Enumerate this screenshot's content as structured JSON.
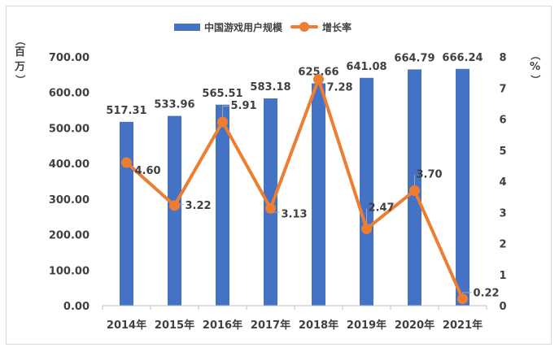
{
  "chart_data": {
    "type": "bar",
    "categories": [
      "2014年",
      "2015年",
      "2016年",
      "2017年",
      "2018年",
      "2019年",
      "2020年",
      "2021年"
    ],
    "series": [
      {
        "name": "中国游戏用户规模",
        "type": "bar",
        "axis": "left",
        "values": [
          517.31,
          533.96,
          565.51,
          583.18,
          625.66,
          641.08,
          664.79,
          666.24
        ],
        "labels": [
          "517.31",
          "533.96",
          "565.51",
          "583.18",
          "625.66",
          "641.08",
          "664.79",
          "666.24"
        ],
        "color": "#4472c4"
      },
      {
        "name": "增长率",
        "type": "line",
        "axis": "right",
        "values": [
          4.6,
          3.22,
          5.91,
          3.13,
          7.28,
          2.47,
          3.7,
          0.22
        ],
        "labels": [
          "4.60",
          "3.22",
          "5.91",
          "3.13",
          "7.28",
          "2.47",
          "3.70",
          "0.22"
        ],
        "color": "#ed7d31"
      }
    ],
    "y_left": {
      "title_chars": [
        "（",
        "百",
        "万",
        "）"
      ],
      "ticks": [
        "0.00",
        "100.00",
        "200.00",
        "300.00",
        "400.00",
        "500.00",
        "600.00",
        "700.00"
      ],
      "ylim": [
        0,
        700
      ]
    },
    "y_right": {
      "title_chars": [
        "%"
      ],
      "ticks": [
        "0",
        "1",
        "2",
        "3",
        "4",
        "5",
        "6",
        "7",
        "8"
      ],
      "ylim": [
        0,
        8
      ]
    },
    "legend": {
      "position": "top",
      "items": [
        "中国游戏用户规模",
        "增长率"
      ]
    },
    "grid": false
  }
}
